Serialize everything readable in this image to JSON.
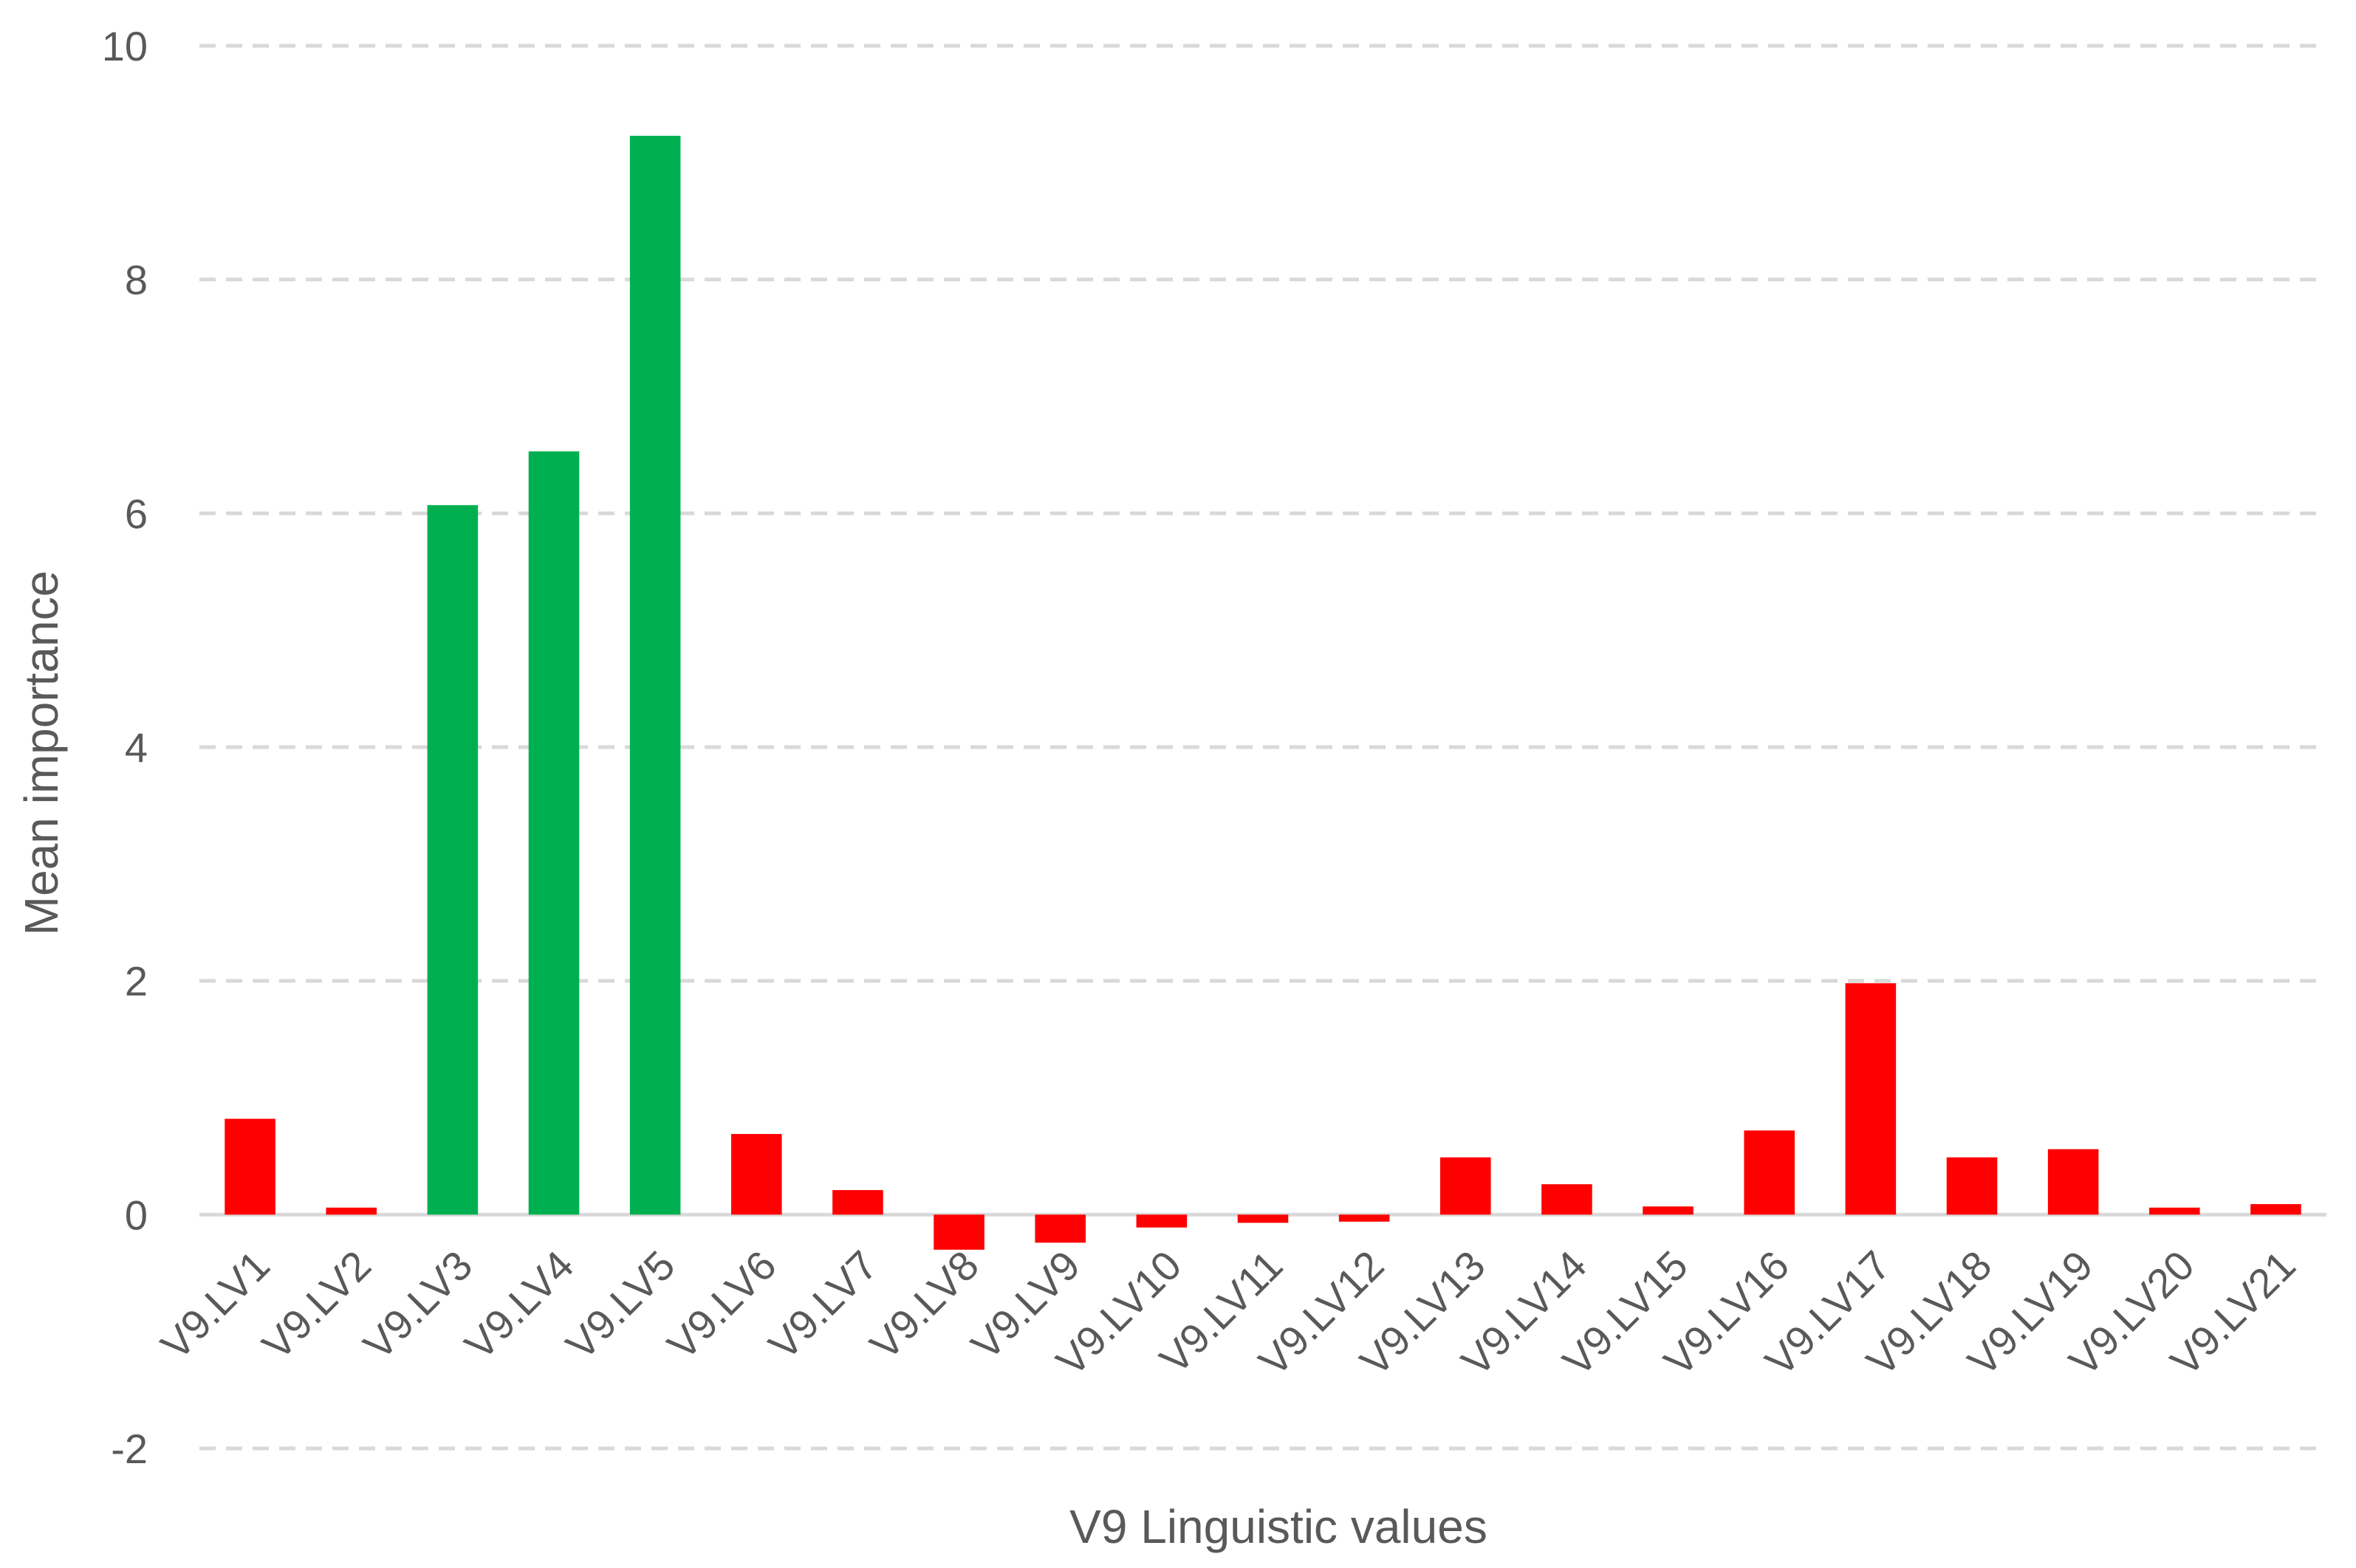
{
  "chart_data": {
    "type": "bar",
    "categories": [
      "V9.LV1",
      "V9.LV2",
      "V9.LV3",
      "V9.LV4",
      "V9.LV5",
      "V9.LV6",
      "V9.LV7",
      "V9.LV8",
      "V9.LV9",
      "V9.LV10",
      "V9.LV11",
      "V9.LV12",
      "V9.LV13",
      "V9.LV14",
      "V9.LV15",
      "V9.LV16",
      "V9.LV17",
      "V9.LV18",
      "V9.LV19",
      "V9.LV20",
      "V9.LV21"
    ],
    "values": [
      0.82,
      0.06,
      6.07,
      6.53,
      9.23,
      0.69,
      0.21,
      -0.3,
      -0.24,
      -0.11,
      -0.07,
      -0.06,
      0.49,
      0.26,
      0.07,
      0.72,
      1.98,
      0.49,
      0.56,
      0.06,
      0.09
    ],
    "colors": [
      "#ff0000",
      "#ff0000",
      "#00b050",
      "#00b050",
      "#00b050",
      "#ff0000",
      "#ff0000",
      "#ff0000",
      "#ff0000",
      "#ff0000",
      "#ff0000",
      "#ff0000",
      "#ff0000",
      "#ff0000",
      "#ff0000",
      "#ff0000",
      "#ff0000",
      "#ff0000",
      "#ff0000",
      "#ff0000",
      "#ff0000"
    ],
    "xlabel": "V9 Linguistic values",
    "ylabel": "Mean importance",
    "ylim": [
      -2,
      10
    ],
    "yticks": [
      -2,
      0,
      2,
      4,
      6,
      8,
      10
    ],
    "grid": true
  }
}
